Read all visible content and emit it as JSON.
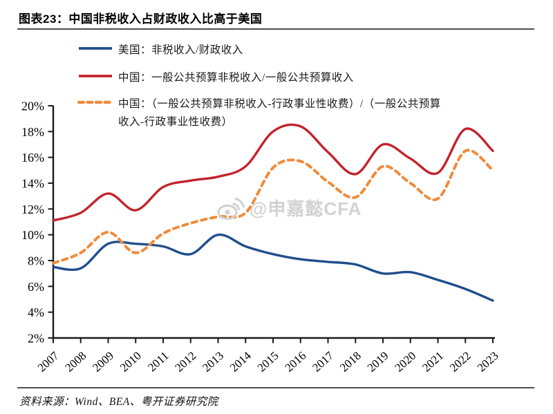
{
  "header": {
    "title": "图表23：中国非税收入占财政收入比高于美国"
  },
  "legend": {
    "item1": {
      "label": "美国：非税收入/财政收入",
      "color": "#1F4E8C",
      "style": "solid"
    },
    "item2": {
      "label": "中国：一般公共预算非税收入/一般公共预算收入",
      "color": "#C2232B",
      "style": "solid"
    },
    "item3": {
      "label": "中国：（一般公共预算非税收入-行政事业性收费）/（一般公共预算",
      "label2": "收入-行政事业性收费）",
      "color": "#EE8B3C",
      "style": "dashed"
    }
  },
  "watermark": {
    "icon": "weibo-icon",
    "text": "@申嘉懿CFA"
  },
  "footer": {
    "source": "资料来源：Wind、BEA、粤开证券研究院"
  },
  "chart_data": {
    "type": "line",
    "title": "图表23：中国非税收入占财政收入比高于美国",
    "x": [
      2007,
      2008,
      2009,
      2010,
      2011,
      2012,
      2013,
      2014,
      2015,
      2016,
      2017,
      2018,
      2019,
      2020,
      2021,
      2022,
      2023
    ],
    "ylim": [
      2,
      20
    ],
    "ytick_step": 2,
    "ytick_suffix": "%",
    "grid": false,
    "legend_position": "top-left",
    "line_style": "smooth",
    "series": [
      {
        "name": "美国：非税收入/财政收入",
        "color": "#1F4E8C",
        "style": "solid",
        "values": [
          7.5,
          7.4,
          9.3,
          9.3,
          9.1,
          8.5,
          10.0,
          9.1,
          8.5,
          8.1,
          7.9,
          7.7,
          7.0,
          7.1,
          6.5,
          5.8,
          4.9
        ]
      },
      {
        "name": "中国：一般公共预算非税收入/一般公共预算收入",
        "color": "#C2232B",
        "style": "solid",
        "values": [
          11.1,
          11.7,
          13.2,
          11.9,
          13.7,
          14.2,
          14.5,
          15.3,
          18.0,
          18.4,
          16.4,
          14.7,
          17.0,
          15.9,
          14.8,
          18.2,
          16.5
        ]
      },
      {
        "name": "中国：（一般公共预算非税收入-行政事业性收费）/（一般公共预算收入-行政事业性收费）",
        "color": "#EE8B3C",
        "style": "dashed",
        "values": [
          7.8,
          8.6,
          10.2,
          8.6,
          10.1,
          10.9,
          11.4,
          11.7,
          15.2,
          15.7,
          14.1,
          12.9,
          15.3,
          14.0,
          12.8,
          16.5,
          15.0
        ]
      }
    ]
  }
}
